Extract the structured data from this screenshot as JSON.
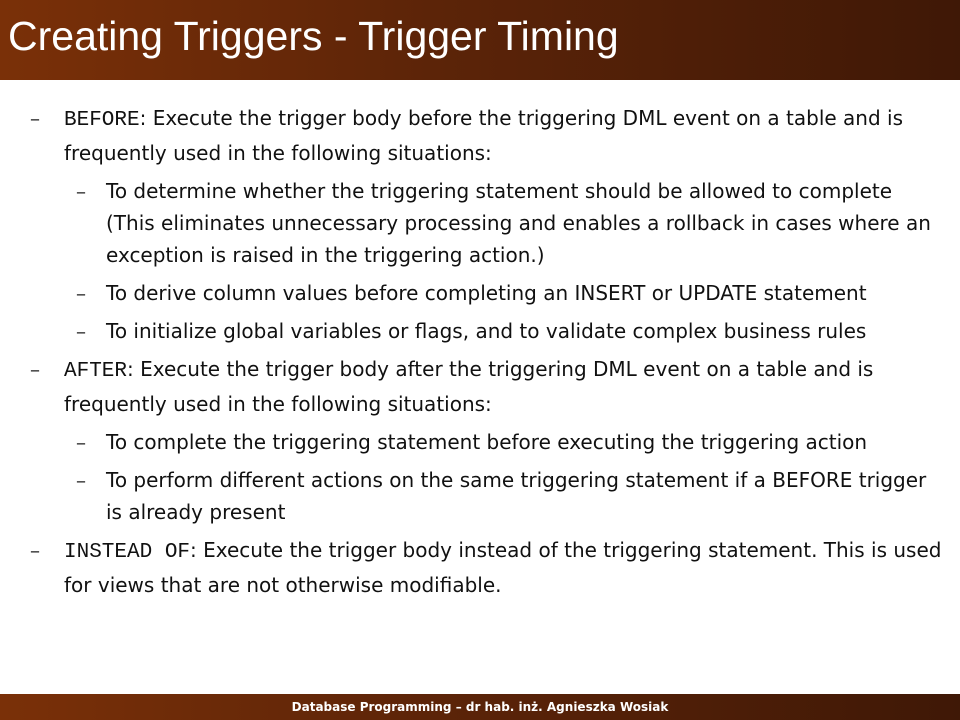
{
  "slide": {
    "title": "Creating Triggers - Trigger Timing",
    "footer": "Database Programming – dr hab. inż. Agnieszka Wosiak",
    "bullet_glyph": "–"
  },
  "items": [
    {
      "keyword": "BEFORE",
      "text": ": Execute the trigger body before the triggering DML event on a table and  is frequently used in the following situations:",
      "subitems": [
        "To determine whether the triggering statement should be allowed to complete (This eliminates unnecessary processing and enables a rollback in cases where an exception is raised in the triggering action.)",
        "To derive column values before completing an INSERT or UPDATE statement",
        "To initialize global variables or flags, and to validate complex business rules"
      ]
    },
    {
      "keyword": "AFTER",
      "text": ": Execute the trigger body after the triggering DML event on a table and is frequently used in the following situations:",
      "subitems": [
        "To complete the triggering statement before executing the triggering action",
        "To perform different actions on the same triggering statement if a BEFORE trigger is already present"
      ]
    },
    {
      "keyword": "INSTEAD OF",
      "text": ": Execute the trigger body instead of the triggering statement. This is used for views that are not otherwise modifiable.",
      "subitems": []
    }
  ]
}
